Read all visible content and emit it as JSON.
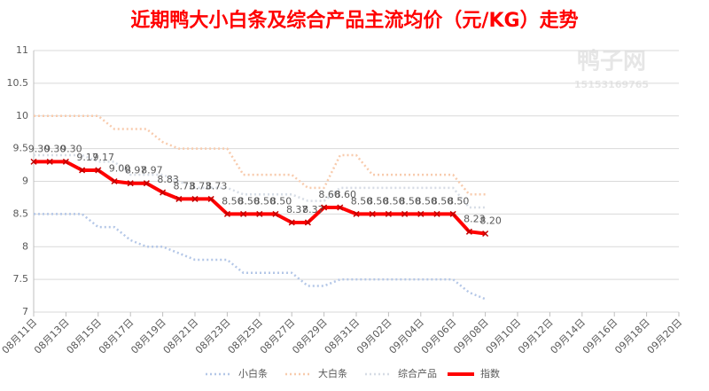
{
  "chart_data": {
    "type": "line",
    "title": "近期鸭大小白条及综合产品主流均价（元/KG）走势",
    "watermark": "鸭子网",
    "watermark_phone": "15153169765",
    "categories": [
      "08月11日",
      null,
      "08月13日",
      null,
      "08月15日",
      null,
      "08月17日",
      null,
      "08月19日",
      null,
      "08月21日",
      null,
      "08月23日",
      null,
      "08月25日",
      null,
      "08月27日",
      null,
      "08月29日",
      null,
      "08月31日",
      null,
      "09月02日",
      null,
      "09月04日",
      null,
      "09月06日",
      null,
      "09月08日",
      null,
      "09月10日",
      null,
      "09月12日",
      null,
      "09月14日",
      null,
      "09月16日",
      null,
      "09月18日",
      null,
      "09月20日"
    ],
    "ylim": [
      7,
      11
    ],
    "yticks": [
      7,
      7.5,
      8,
      8.5,
      9,
      9.5,
      10,
      10.5,
      11
    ],
    "grid": true,
    "series": [
      {
        "name": "小白条",
        "color": "#b4c7e7",
        "values": [
          8.5,
          8.5,
          8.5,
          8.5,
          8.3,
          8.3,
          8.1,
          8.0,
          8.0,
          7.9,
          7.8,
          7.8,
          7.8,
          7.6,
          7.6,
          7.6,
          7.6,
          7.4,
          7.4,
          7.5,
          7.5,
          7.5,
          7.5,
          7.5,
          7.5,
          7.5,
          7.5,
          7.3,
          7.2,
          null,
          null,
          null,
          null,
          null,
          null,
          null,
          null,
          null,
          null,
          null,
          null
        ]
      },
      {
        "name": "大白条",
        "color": "#f8cbad",
        "values": [
          10.0,
          10.0,
          10.0,
          10.0,
          10.0,
          9.8,
          9.8,
          9.8,
          9.6,
          9.5,
          9.5,
          9.5,
          9.5,
          9.1,
          9.1,
          9.1,
          9.1,
          8.9,
          8.9,
          9.4,
          9.4,
          9.1,
          9.1,
          9.1,
          9.1,
          9.1,
          9.1,
          8.8,
          8.8,
          null,
          null,
          null,
          null,
          null,
          null,
          null,
          null,
          null,
          null,
          null,
          null
        ]
      },
      {
        "name": "综合产品",
        "color": "#d6dce5",
        "values": [
          9.4,
          9.4,
          9.4,
          9.4,
          9.3,
          9.3,
          9.1,
          9.1,
          9.1,
          9.0,
          8.9,
          8.9,
          8.9,
          8.8,
          8.8,
          8.8,
          8.8,
          8.7,
          8.7,
          8.9,
          8.9,
          8.9,
          8.9,
          8.9,
          8.9,
          8.9,
          8.9,
          8.6,
          8.6,
          null,
          null,
          null,
          null,
          null,
          null,
          null,
          null,
          null,
          null,
          null,
          null
        ]
      },
      {
        "name": "指数",
        "color": "#ff0000",
        "values": [
          9.3,
          9.3,
          9.3,
          9.17,
          9.17,
          9.0,
          8.97,
          8.97,
          8.83,
          8.73,
          8.73,
          8.73,
          8.5,
          8.5,
          8.5,
          8.5,
          8.37,
          8.37,
          8.6,
          8.6,
          8.5,
          8.5,
          8.5,
          8.5,
          8.5,
          8.5,
          8.5,
          8.23,
          8.2,
          null,
          null,
          null,
          null,
          null,
          null,
          null,
          null,
          null,
          null,
          null,
          null
        ],
        "value_labels": [
          "9.30",
          "9.30",
          "9.30",
          "9.17",
          "9.17",
          "9.00",
          "8.97",
          "8.97",
          "8.83",
          "8.73",
          "8.73",
          "8.73",
          "8.50",
          "8.50",
          "8.50",
          "8.50",
          "8.37",
          "8.37",
          "8.60",
          "8.60",
          "8.50",
          "8.50",
          "8.50",
          "8.50",
          "8.50",
          "8.50",
          "8.50",
          "8.23",
          "8.20",
          null,
          null,
          null,
          null,
          null,
          null,
          null,
          null,
          null,
          null,
          null,
          null
        ]
      }
    ]
  }
}
